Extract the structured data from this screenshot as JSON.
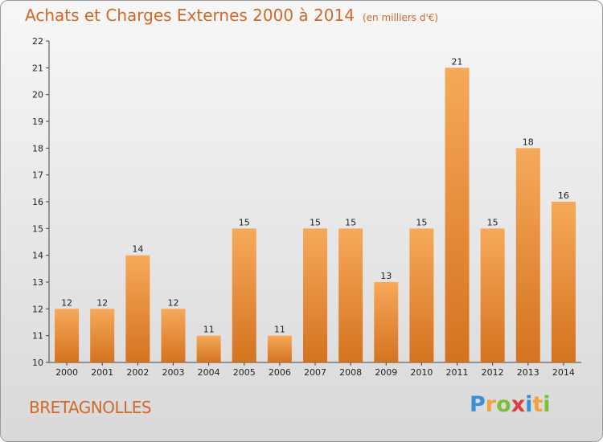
{
  "header": {
    "title": "Achats et Charges Externes 2000 à 2014",
    "subtitle": "(en milliers d'€)"
  },
  "footer": {
    "place": "BRETAGNOLLES",
    "brand_letters": [
      "P",
      "r",
      "o",
      "x",
      "i",
      "t",
      "i"
    ],
    "brand_colors": [
      "#3a8fd6",
      "#f2a23a",
      "#7bbf3a",
      "#e23b3b",
      "#3a8fd6",
      "#f2a23a",
      "#7bbf3a"
    ]
  },
  "colors": {
    "title": "#d0682a",
    "bar_top": "#f6a95a",
    "bar_bottom": "#d4731f"
  },
  "chart_data": {
    "type": "bar",
    "title": "Achats et Charges Externes 2000 à 2014",
    "subtitle": "(en milliers d'€)",
    "categories": [
      "2000",
      "2001",
      "2002",
      "2003",
      "2004",
      "2005",
      "2006",
      "2007",
      "2008",
      "2009",
      "2010",
      "2011",
      "2012",
      "2013",
      "2014"
    ],
    "values": [
      12,
      12,
      14,
      12,
      11,
      15,
      11,
      15,
      15,
      13,
      15,
      21,
      15,
      18,
      16
    ],
    "data_labels": [
      "12",
      "12",
      "14",
      "12",
      "11",
      "15",
      "11",
      "15",
      "15",
      "13",
      "15",
      "21",
      "15",
      "18",
      "16"
    ],
    "ylim": [
      10,
      22
    ],
    "yticks": [
      10,
      11,
      12,
      13,
      14,
      15,
      16,
      17,
      18,
      19,
      20,
      21,
      22
    ],
    "ytick_labels": [
      "10",
      "11",
      "12",
      "13",
      "14",
      "15",
      "16",
      "17",
      "18",
      "19",
      "20",
      "21",
      "22"
    ],
    "grid": false,
    "xlabel": "",
    "ylabel": ""
  }
}
